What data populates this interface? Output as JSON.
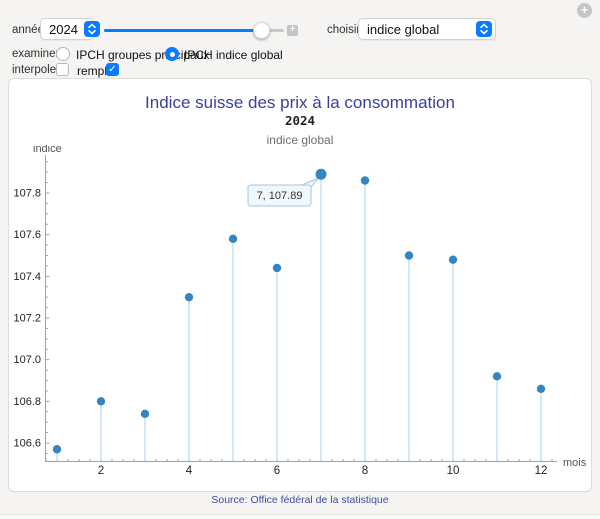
{
  "page": {
    "accent": "#0a7aff",
    "background": "#f5f4f2"
  },
  "widget": {
    "corner_plus": "+",
    "mini_plus": "+"
  },
  "controls": {
    "annee_label": "année",
    "annee_value": "2024",
    "slider": {
      "fraction": 0.915
    },
    "choisir_label": "choisir",
    "choisir_value": "indice global",
    "examiner_label": "examiner",
    "radio_options": [
      {
        "label": "IPCH groupes principaux",
        "selected": false
      },
      {
        "label": "IPCH indice global",
        "selected": true
      }
    ],
    "interpoler_label": "interpoler",
    "interpoler_checked": false,
    "remplir_label": "remplir",
    "remplir_checked": true,
    "check_glyph": "✓"
  },
  "panel": {
    "title": "Indice suisse des prix à la consommation",
    "subtitle_year": "2024",
    "subtitle_series": "indice global",
    "source": "Source: Office fédéral de la statistique"
  },
  "chart_data": {
    "type": "stem",
    "title": "Indice suisse des prix à la consommation",
    "subtitle": "2024 — indice global",
    "xlabel": "mois",
    "ylabel": "indice",
    "x": [
      1,
      2,
      3,
      4,
      5,
      6,
      7,
      8,
      9,
      10,
      11,
      12
    ],
    "values": [
      106.57,
      106.8,
      106.74,
      107.3,
      107.58,
      107.44,
      107.89,
      107.86,
      107.5,
      107.48,
      106.92,
      106.86
    ],
    "xlim": [
      0.72,
      12.4
    ],
    "ylim": [
      106.51,
      107.99
    ],
    "y_ticks": [
      106.6,
      106.8,
      107.0,
      107.2,
      107.4,
      107.6,
      107.8
    ],
    "y_tick_labels": [
      "106.6",
      "106.8",
      "107.0",
      "107.2",
      "107.4",
      "107.6",
      "107.8"
    ],
    "x_labeled_ticks": [
      2,
      4,
      6,
      8,
      10,
      12
    ],
    "grid": false,
    "legend": "none",
    "highlight": {
      "x": 7,
      "value": 107.89,
      "tooltip": "7, 107.89"
    },
    "point_color": "#3385c4",
    "stem_color": "#c9e1f4",
    "axis_color": "#a3a3a3",
    "tick_label_color": "#222222",
    "axis_label_color": "#555555",
    "tooltip_fill": "#f1f8fd",
    "tooltip_border": "#a3c6e0"
  }
}
